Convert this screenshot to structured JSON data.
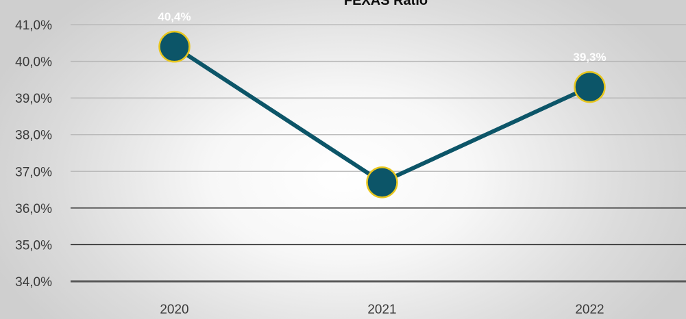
{
  "chart_data": {
    "type": "line",
    "title": "FEXAS Ratio",
    "categories": [
      "2020",
      "2021",
      "2022"
    ],
    "series": [
      {
        "values": [
          40.4,
          36.7,
          39.3
        ]
      }
    ],
    "data_labels": [
      "40,4%",
      "",
      "39,3%"
    ],
    "ylim": [
      34.0,
      41.0
    ],
    "yticks": [
      34,
      35,
      36,
      37,
      38,
      39,
      40,
      41
    ],
    "ytick_labels": [
      "34,0%",
      "35,0%",
      "36,0%",
      "37,0%",
      "38,0%",
      "39,0%",
      "40,0%",
      "41,0%"
    ],
    "grid": true,
    "legend": "none",
    "colors": {
      "line": "#0c5568",
      "marker_fill": "#0c5568",
      "marker_edge": "#e8c61e",
      "grid": "#b4b4b4",
      "axis": "#595959"
    }
  }
}
